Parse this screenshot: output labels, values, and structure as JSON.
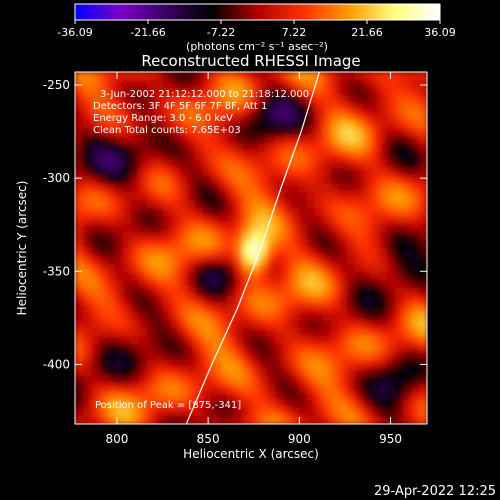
{
  "colorbar": {
    "tick_labels": [
      "-36.09",
      "-21.66",
      "-7.22",
      "7.22",
      "21.66",
      "36.09"
    ],
    "units": "(photons cm⁻² s⁻¹ asec⁻²)",
    "range": [
      -36.09,
      36.09
    ],
    "colors": [
      "#0000ff",
      "#7a00c8",
      "#3a0060",
      "#000000",
      "#b00000",
      "#ff3000",
      "#ff9a00",
      "#ffff80",
      "#ffffff"
    ]
  },
  "plot": {
    "title": "Reconstructed RHESSI Image",
    "xlabel": "Heliocentric X (arcsec)",
    "ylabel": "Heliocentric Y (arcsec)",
    "annotations": {
      "time_range": "3-Jun-2002 21:12:12.000 to 21:18:12.000",
      "detectors": "Detectors: 3F 4F 5F 6F 7F 8F, Att 1",
      "energy": "Energy Range: 3.0 - 6.0 keV",
      "clean": "Clean    Total counts: 7.65E+03",
      "peak": "Position of Peak = [875,-341]"
    }
  },
  "chart_data": {
    "type": "heatmap",
    "title": "Reconstructed RHESSI Image",
    "xlabel": "Heliocentric X (arcsec)",
    "ylabel": "Heliocentric Y (arcsec)",
    "xlim": [
      777,
      970
    ],
    "ylim": [
      -432,
      -243
    ],
    "x_ticks": [
      800,
      850,
      900,
      950
    ],
    "x_tick_labels": [
      "800",
      "850",
      "900",
      "950"
    ],
    "y_ticks": [
      -250,
      -300,
      -350,
      -400
    ],
    "y_tick_labels": [
      "-250",
      "-300",
      "-350",
      "-400"
    ],
    "value_range": [
      -36.09,
      36.09
    ],
    "peak": {
      "x": 875,
      "y": -341,
      "value": 36.09
    },
    "limb_curve": {
      "x": [
        838,
        852,
        866,
        878,
        890,
        901,
        911
      ],
      "y": [
        -432,
        -400,
        -370,
        -340,
        -305,
        -275,
        -243
      ]
    }
  },
  "footer": {
    "timestamp": "29-Apr-2022 12:25"
  }
}
